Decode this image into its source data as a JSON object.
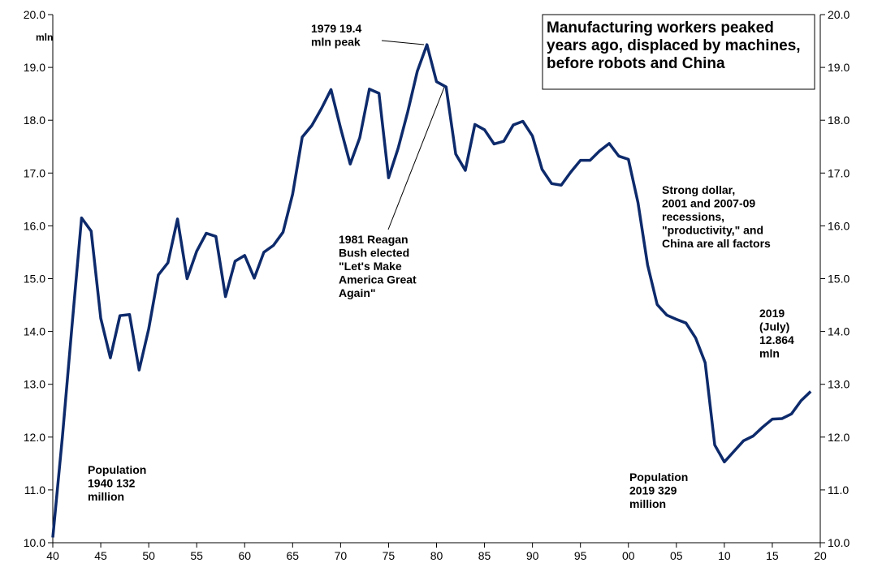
{
  "chart_data": {
    "type": "line",
    "title": [
      "Manufacturing workers peaked",
      "years ago, displaced by machines,",
      "before robots and China"
    ],
    "y_unit": "mln",
    "x": [
      1940,
      1941,
      1942,
      1943,
      1944,
      1945,
      1946,
      1947,
      1948,
      1949,
      1950,
      1951,
      1952,
      1953,
      1954,
      1955,
      1956,
      1957,
      1958,
      1959,
      1960,
      1961,
      1962,
      1963,
      1964,
      1965,
      1966,
      1967,
      1968,
      1969,
      1970,
      1971,
      1972,
      1973,
      1974,
      1975,
      1976,
      1977,
      1978,
      1979,
      1980,
      1981,
      1982,
      1983,
      1984,
      1985,
      1986,
      1987,
      1988,
      1989,
      1990,
      1991,
      1992,
      1993,
      1994,
      1995,
      1996,
      1997,
      1998,
      1999,
      2000,
      2001,
      2002,
      2003,
      2004,
      2005,
      2006,
      2007,
      2008,
      2009,
      2010,
      2011,
      2012,
      2013,
      2014,
      2015,
      2016,
      2017,
      2018,
      2019
    ],
    "series": [
      {
        "color": "#0d2a6b",
        "values": [
          10.1,
          12.0,
          14.1,
          16.15,
          15.9,
          14.25,
          13.5,
          14.3,
          14.32,
          13.27,
          14.05,
          15.07,
          15.3,
          16.13,
          15.0,
          15.52,
          15.86,
          15.8,
          14.66,
          15.33,
          15.44,
          15.01,
          15.5,
          15.63,
          15.88,
          16.6,
          17.68,
          17.9,
          18.22,
          18.58,
          17.85,
          17.17,
          17.67,
          18.59,
          18.51,
          16.91,
          17.47,
          18.16,
          18.93,
          19.43,
          18.73,
          18.63,
          17.36,
          17.05,
          17.92,
          17.82,
          17.55,
          17.6,
          17.91,
          17.98,
          17.7,
          17.07,
          16.8,
          16.77,
          17.02,
          17.24,
          17.24,
          17.42,
          17.56,
          17.32,
          17.26,
          16.44,
          15.26,
          14.51,
          14.31,
          14.23,
          14.16,
          13.88,
          13.41,
          11.85,
          11.53,
          11.73,
          11.93,
          12.02,
          12.19,
          12.34,
          12.35,
          12.44,
          12.69,
          12.864
        ]
      }
    ],
    "xlim": [
      1940,
      2020
    ],
    "xticks": [
      {
        "value": 1940,
        "label": "40"
      },
      {
        "value": 1945,
        "label": "45"
      },
      {
        "value": 1950,
        "label": "50"
      },
      {
        "value": 1955,
        "label": "55"
      },
      {
        "value": 1960,
        "label": "60"
      },
      {
        "value": 1965,
        "label": "65"
      },
      {
        "value": 1970,
        "label": "70"
      },
      {
        "value": 1975,
        "label": "75"
      },
      {
        "value": 1980,
        "label": "80"
      },
      {
        "value": 1985,
        "label": "85"
      },
      {
        "value": 1990,
        "label": "90"
      },
      {
        "value": 1995,
        "label": "95"
      },
      {
        "value": 2000,
        "label": "00"
      },
      {
        "value": 2005,
        "label": "05"
      },
      {
        "value": 2010,
        "label": "10"
      },
      {
        "value": 2015,
        "label": "15"
      },
      {
        "value": 2020,
        "label": "20"
      }
    ],
    "ylim": [
      10,
      20
    ],
    "yticks": [
      {
        "value": 10,
        "label": "10.0"
      },
      {
        "value": 11,
        "label": "11.0"
      },
      {
        "value": 12,
        "label": "12.0"
      },
      {
        "value": 13,
        "label": "13.0"
      },
      {
        "value": 14,
        "label": "14.0"
      },
      {
        "value": 15,
        "label": "15.0"
      },
      {
        "value": 16,
        "label": "16.0"
      },
      {
        "value": 17,
        "label": "17.0"
      },
      {
        "value": 18,
        "label": "18.0"
      },
      {
        "value": 19,
        "label": "19.0"
      },
      {
        "value": 20,
        "label": "20.0"
      }
    ],
    "annotations": [
      [
        "1979 19.4",
        "mln peak"
      ],
      [
        "1981 Reagan",
        "Bush elected",
        "\"Let's Make",
        "America Great",
        "Again\""
      ],
      [
        "Strong dollar,",
        "2001 and 2007-09",
        "recessions,",
        "\"productivity,\" and",
        "China are all factors"
      ],
      [
        "2019",
        "(July)",
        "12.864",
        "mln"
      ],
      [
        "Population",
        "1940 132",
        "million"
      ],
      [
        "Population",
        "2019 329",
        "million"
      ]
    ]
  }
}
